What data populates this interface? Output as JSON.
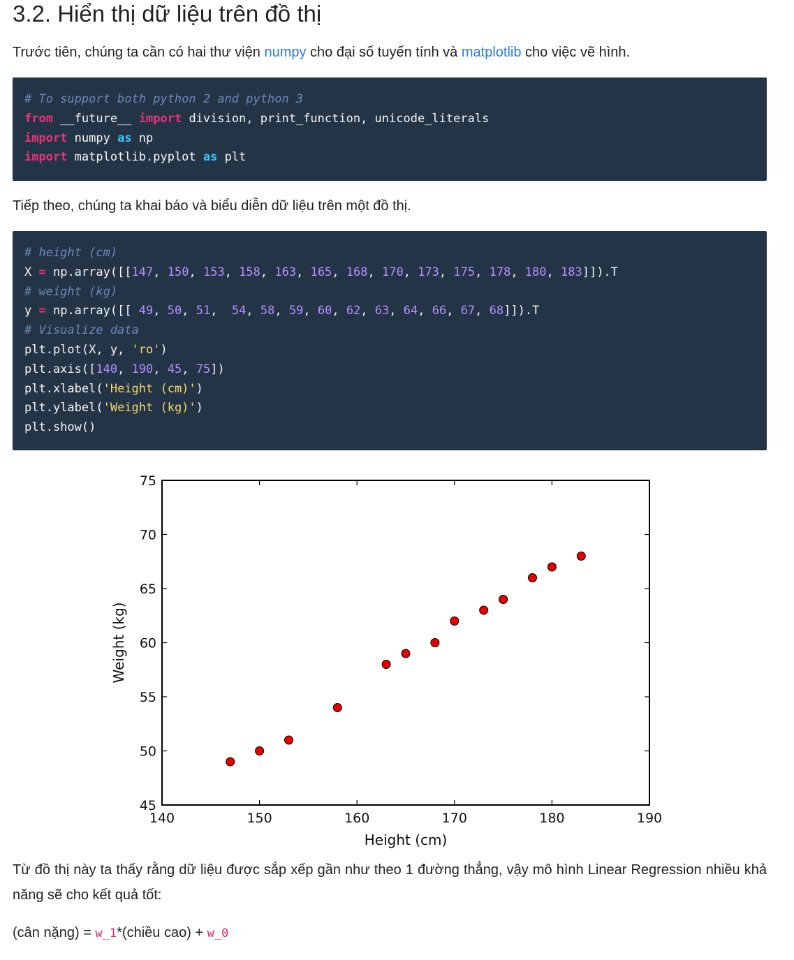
{
  "heading": "3.2. Hiển thị dữ liệu trên đồ thị",
  "intro": {
    "before": "Trước tiên, chúng ta cần có hai thư viện ",
    "link1": "numpy",
    "middle": " cho đại số tuyến tính và ",
    "link2": "matplotlib",
    "after": " cho việc vẽ hình."
  },
  "code1": [
    [
      [
        "cm",
        "# To support both python 2 and python 3"
      ]
    ],
    [
      [
        "kw",
        "from"
      ],
      [
        "plain",
        " __future__ "
      ],
      [
        "kw",
        "import"
      ],
      [
        "plain",
        " division, print_function, unicode_literals"
      ]
    ],
    [
      [
        "kw",
        "import"
      ],
      [
        "plain",
        " numpy "
      ],
      [
        "kw2",
        "as"
      ],
      [
        "plain",
        " np"
      ]
    ],
    [
      [
        "kw",
        "import"
      ],
      [
        "plain",
        " matplotlib.pyplot "
      ],
      [
        "kw2",
        "as"
      ],
      [
        "plain",
        " plt"
      ]
    ]
  ],
  "para2": "Tiếp theo, chúng ta khai báo và biểu diễn dữ liệu trên một đồ thị.",
  "code2": [
    [
      [
        "cm",
        "# height (cm)"
      ]
    ],
    [
      [
        "plain",
        "X "
      ],
      [
        "kw",
        "="
      ],
      [
        "plain",
        " np.array([["
      ],
      [
        "num",
        "147"
      ],
      [
        "plain",
        ", "
      ],
      [
        "num",
        "150"
      ],
      [
        "plain",
        ", "
      ],
      [
        "num",
        "153"
      ],
      [
        "plain",
        ", "
      ],
      [
        "num",
        "158"
      ],
      [
        "plain",
        ", "
      ],
      [
        "num",
        "163"
      ],
      [
        "plain",
        ", "
      ],
      [
        "num",
        "165"
      ],
      [
        "plain",
        ", "
      ],
      [
        "num",
        "168"
      ],
      [
        "plain",
        ", "
      ],
      [
        "num",
        "170"
      ],
      [
        "plain",
        ", "
      ],
      [
        "num",
        "173"
      ],
      [
        "plain",
        ", "
      ],
      [
        "num",
        "175"
      ],
      [
        "plain",
        ", "
      ],
      [
        "num",
        "178"
      ],
      [
        "plain",
        ", "
      ],
      [
        "num",
        "180"
      ],
      [
        "plain",
        ", "
      ],
      [
        "num",
        "183"
      ],
      [
        "plain",
        "]]).T"
      ]
    ],
    [
      [
        "cm",
        "# weight (kg)"
      ]
    ],
    [
      [
        "plain",
        "y "
      ],
      [
        "kw",
        "="
      ],
      [
        "plain",
        " np.array([[ "
      ],
      [
        "num",
        "49"
      ],
      [
        "plain",
        ", "
      ],
      [
        "num",
        "50"
      ],
      [
        "plain",
        ", "
      ],
      [
        "num",
        "51"
      ],
      [
        "plain",
        ",  "
      ],
      [
        "num",
        "54"
      ],
      [
        "plain",
        ", "
      ],
      [
        "num",
        "58"
      ],
      [
        "plain",
        ", "
      ],
      [
        "num",
        "59"
      ],
      [
        "plain",
        ", "
      ],
      [
        "num",
        "60"
      ],
      [
        "plain",
        ", "
      ],
      [
        "num",
        "62"
      ],
      [
        "plain",
        ", "
      ],
      [
        "num",
        "63"
      ],
      [
        "plain",
        ", "
      ],
      [
        "num",
        "64"
      ],
      [
        "plain",
        ", "
      ],
      [
        "num",
        "66"
      ],
      [
        "plain",
        ", "
      ],
      [
        "num",
        "67"
      ],
      [
        "plain",
        ", "
      ],
      [
        "num",
        "68"
      ],
      [
        "plain",
        "]]).T"
      ]
    ],
    [
      [
        "cm",
        "# Visualize data"
      ]
    ],
    [
      [
        "plain",
        "plt.plot(X, y, "
      ],
      [
        "str",
        "'ro'"
      ],
      [
        "plain",
        ")"
      ]
    ],
    [
      [
        "plain",
        "plt.axis(["
      ],
      [
        "num",
        "140"
      ],
      [
        "plain",
        ", "
      ],
      [
        "num",
        "190"
      ],
      [
        "plain",
        ", "
      ],
      [
        "num",
        "45"
      ],
      [
        "plain",
        ", "
      ],
      [
        "num",
        "75"
      ],
      [
        "plain",
        "])"
      ]
    ],
    [
      [
        "plain",
        "plt.xlabel("
      ],
      [
        "str",
        "'Height (cm)'"
      ],
      [
        "plain",
        ")"
      ]
    ],
    [
      [
        "plain",
        "plt.ylabel("
      ],
      [
        "str",
        "'Weight (kg)'"
      ],
      [
        "plain",
        ")"
      ]
    ],
    [
      [
        "plain",
        "plt.show()"
      ]
    ]
  ],
  "chart_data": {
    "type": "scatter",
    "x": [
      147,
      150,
      153,
      158,
      163,
      165,
      168,
      170,
      173,
      175,
      178,
      180,
      183
    ],
    "y": [
      49,
      50,
      51,
      54,
      58,
      59,
      60,
      62,
      63,
      64,
      66,
      67,
      68
    ],
    "xlabel": "Height (cm)",
    "ylabel": "Weight (kg)",
    "xlim": [
      140,
      190
    ],
    "ylim": [
      45,
      75
    ],
    "xticks": [
      "140",
      "150",
      "160",
      "170",
      "180",
      "190"
    ],
    "yticks": [
      "45",
      "50",
      "55",
      "60",
      "65",
      "70",
      "75"
    ],
    "marker_color": "#e60000",
    "grid": false
  },
  "para3": "Từ đồ thị này ta thấy rằng dữ liệu được sắp xếp gần như theo 1 đường thẳng, vậy mô hình Linear Regression nhiều khả năng sẽ cho kết quả tốt:",
  "formula": {
    "part1": "(cân nặng) = ",
    "w1": "w_1",
    "part2": "*(chiều cao) + ",
    "w0": "w_0"
  }
}
